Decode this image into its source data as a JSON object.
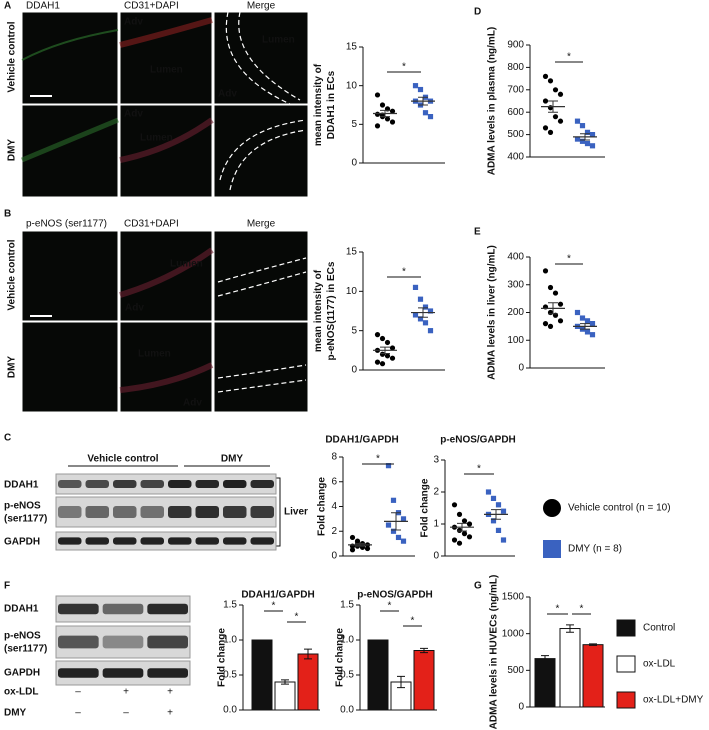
{
  "panel_letters": [
    "A",
    "B",
    "C",
    "D",
    "E",
    "F",
    "G"
  ],
  "image_panel_a": {
    "column_headers": [
      "DDAH1",
      "CD31",
      "+DAPI",
      "Merge"
    ],
    "row_labels": [
      "Vehicle control",
      "DMY"
    ],
    "image_labels": [
      "Adv",
      "Lumen",
      "Lumen",
      "Adv",
      "Adv",
      "Lumen"
    ]
  },
  "image_panel_b": {
    "column_headers": [
      "p-eNOS (ser1177)",
      "CD31",
      "+DAPI",
      "Merge"
    ],
    "row_labels": [
      "Vehicle control",
      "DMY"
    ],
    "image_labels": [
      "Lumen",
      "Adv",
      "Lumen",
      "Adv"
    ]
  },
  "blot_c": {
    "group_labels": [
      "Vehicle control",
      "DMY"
    ],
    "row_labels": [
      "DDAH1",
      "p-eNOS",
      "(ser1177)",
      "GAPDH"
    ],
    "tissue_label": "Liver"
  },
  "blot_f": {
    "row_labels": [
      "DDAH1",
      "p-eNOS",
      "(ser1177)",
      "GAPDH"
    ],
    "treatment_labels": [
      "ox-LDL",
      "DMY"
    ],
    "treatment_signs": [
      [
        "–",
        "+",
        "+"
      ],
      [
        "–",
        "–",
        "+"
      ]
    ]
  },
  "legend_c": [
    {
      "label": "Vehicle control (n = 10)",
      "marker": "circle",
      "color": "#000000"
    },
    {
      "label": "DMY (n = 8)",
      "marker": "square",
      "color": "#3a62c0"
    }
  ],
  "chart_data": [
    {
      "type": "dotplot",
      "ylabel": [
        "mean intensity of",
        "DDAH1 in ECs"
      ],
      "ylim": [
        0,
        15
      ],
      "yticks": [
        0,
        5,
        10,
        15
      ],
      "annotations": [
        "*"
      ],
      "series": [
        {
          "marker": "circle",
          "color": "#000000",
          "values": [
            8.8,
            7.5,
            7.0,
            6.7,
            6.3,
            6.0,
            5.7,
            5.3,
            4.8,
            6.2
          ],
          "mean": 6.4,
          "sem": 0.4
        },
        {
          "marker": "square",
          "color": "#3a62c0",
          "values": [
            10.0,
            9.5,
            8.5,
            8.0,
            8.0,
            7.5,
            6.5,
            6.0
          ],
          "mean": 8.0,
          "sem": 0.5
        }
      ]
    },
    {
      "type": "dotplot",
      "ylabel": [
        "ADMA levels in plasma (ng/mL)"
      ],
      "ylim": [
        400,
        900
      ],
      "yticks": [
        400,
        500,
        600,
        700,
        800,
        900
      ],
      "annotations": [
        "*"
      ],
      "series": [
        {
          "marker": "circle",
          "color": "#000000",
          "values": [
            760,
            740,
            700,
            680,
            650,
            620,
            580,
            560,
            530,
            510
          ],
          "mean": 625,
          "sem": 25
        },
        {
          "marker": "square",
          "color": "#3a62c0",
          "values": [
            560,
            540,
            510,
            500,
            480,
            470,
            460,
            450
          ],
          "mean": 490,
          "sem": 14
        }
      ]
    },
    {
      "type": "dotplot",
      "ylabel": [
        "mean intensity of",
        "p-eNOS(1177) in ECs"
      ],
      "ylim": [
        0,
        15
      ],
      "yticks": [
        0,
        5,
        10,
        15
      ],
      "annotations": [
        "*"
      ],
      "series": [
        {
          "marker": "circle",
          "color": "#000000",
          "values": [
            4.5,
            4.0,
            3.5,
            2.8,
            2.5,
            2.0,
            1.8,
            1.5,
            1.0,
            0.8
          ],
          "mean": 2.5,
          "sem": 0.4
        },
        {
          "marker": "square",
          "color": "#3a62c0",
          "values": [
            10.5,
            9.0,
            8.0,
            7.5,
            7.0,
            6.5,
            6.0,
            5.0
          ],
          "mean": 7.3,
          "sem": 0.6
        }
      ]
    },
    {
      "type": "dotplot",
      "ylabel": [
        "ADMA levels in liver (ng/mL)"
      ],
      "ylim": [
        0,
        400
      ],
      "yticks": [
        0,
        100,
        200,
        300,
        400
      ],
      "annotations": [
        "*"
      ],
      "series": [
        {
          "marker": "circle",
          "color": "#000000",
          "values": [
            350,
            290,
            270,
            230,
            220,
            200,
            190,
            170,
            160,
            150
          ],
          "mean": 215,
          "sem": 20
        },
        {
          "marker": "square",
          "color": "#3a62c0",
          "values": [
            200,
            180,
            170,
            160,
            150,
            140,
            130,
            120
          ],
          "mean": 150,
          "sem": 10
        }
      ]
    },
    {
      "type": "dotplot",
      "title": "DDAH1/GAPDH",
      "ylabel": [
        "Fold change"
      ],
      "ylim": [
        0,
        8
      ],
      "yticks": [
        0,
        2,
        4,
        6,
        8
      ],
      "annotations": [
        "*"
      ],
      "series": [
        {
          "marker": "circle",
          "color": "#000000",
          "values": [
            1.5,
            1.2,
            1.0,
            0.9,
            0.8,
            0.8,
            0.7,
            0.6,
            0.5,
            1.0
          ],
          "mean": 0.9,
          "sem": 0.1
        },
        {
          "marker": "square",
          "color": "#3a62c0",
          "values": [
            7.3,
            4.5,
            3.5,
            3.0,
            2.5,
            2.0,
            1.5,
            1.2
          ],
          "mean": 2.8,
          "sem": 0.7
        }
      ]
    },
    {
      "type": "dotplot",
      "title": "p-eNOS/GAPDH",
      "ylabel": [
        "Fold change"
      ],
      "ylim": [
        0,
        3
      ],
      "yticks": [
        0,
        1,
        2,
        3
      ],
      "annotations": [
        "*"
      ],
      "series": [
        {
          "marker": "circle",
          "color": "#000000",
          "values": [
            1.6,
            1.3,
            1.1,
            1.0,
            0.9,
            0.8,
            0.7,
            0.6,
            0.5,
            0.4
          ],
          "mean": 0.9,
          "sem": 0.12
        },
        {
          "marker": "square",
          "color": "#3a62c0",
          "values": [
            2.0,
            1.8,
            1.6,
            1.4,
            1.3,
            1.1,
            0.8,
            0.5
          ],
          "mean": 1.3,
          "sem": 0.15
        }
      ]
    },
    {
      "type": "bar",
      "title": "DDAH1/GAPDH",
      "ylabel": [
        "Fold change"
      ],
      "ylim": [
        0,
        1.5
      ],
      "yticks": [
        {
          "value": 0,
          "label": "0.0"
        },
        0.5,
        {
          "value": 1,
          "label": "1.0"
        },
        1.5
      ],
      "annotations": [
        "*",
        "*"
      ],
      "values": [
        1.0,
        0.4,
        0.8
      ],
      "errors": [
        0,
        0.03,
        0.07
      ],
      "colors": [
        "#111111",
        "#ffffff",
        "#e32119"
      ]
    },
    {
      "type": "bar",
      "title": "p-eNOS/GAPDH",
      "ylabel": [
        "Fold change"
      ],
      "ylim": [
        0,
        1.5
      ],
      "yticks": [
        {
          "value": 0,
          "label": "0.0"
        },
        0.5,
        {
          "value": 1,
          "label": "1.0"
        },
        1.5
      ],
      "annotations": [
        "*",
        "*"
      ],
      "values": [
        1.0,
        0.4,
        0.85
      ],
      "errors": [
        0,
        0.08,
        0.03
      ],
      "colors": [
        "#111111",
        "#ffffff",
        "#e32119"
      ]
    },
    {
      "type": "bar",
      "ylabel": [
        "ADMA levels in HUVECs (ng/mL)"
      ],
      "ylim": [
        0,
        1500
      ],
      "yticks": [
        0,
        500,
        1000,
        1500
      ],
      "annotations": [
        "*",
        "*"
      ],
      "categories": [
        "Control",
        "ox-LDL",
        "ox-LDL+DMY"
      ],
      "values": [
        660,
        1070,
        850
      ],
      "errors": [
        40,
        50,
        10
      ],
      "colors": [
        "#111111",
        "#ffffff",
        "#e32119"
      ]
    }
  ]
}
